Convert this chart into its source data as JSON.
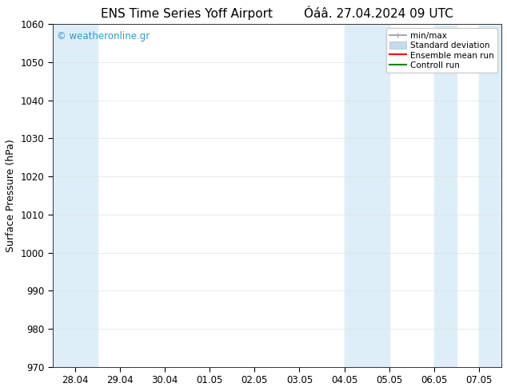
{
  "title_left": "ENS Time Series Yoff Airport",
  "title_right": "Óáâ. 27.04.2024 09 UTC",
  "ylabel": "Surface Pressure (hPa)",
  "ylim": [
    970,
    1060
  ],
  "yticks": [
    970,
    980,
    990,
    1000,
    1010,
    1020,
    1030,
    1040,
    1050,
    1060
  ],
  "xtick_labels": [
    "28.04",
    "29.04",
    "30.04",
    "01.05",
    "02.05",
    "03.05",
    "04.05",
    "05.05",
    "06.05",
    "07.05"
  ],
  "watermark": "© weatheronline.gr",
  "watermark_color": "#3399cc",
  "bg_color": "#ffffff",
  "plot_bg_color": "#ffffff",
  "shaded_color": "#ddeef8",
  "legend_items": [
    {
      "label": "min/max",
      "color": "#aaaaaa",
      "lw": 1.5
    },
    {
      "label": "Standard deviation",
      "color": "#c5dbed",
      "lw": 6
    },
    {
      "label": "Ensemble mean run",
      "color": "#ff0000",
      "lw": 1.5
    },
    {
      "label": "Controll run",
      "color": "#008800",
      "lw": 1.5
    }
  ],
  "title_fontsize": 11,
  "axis_label_fontsize": 9,
  "tick_fontsize": 8.5
}
